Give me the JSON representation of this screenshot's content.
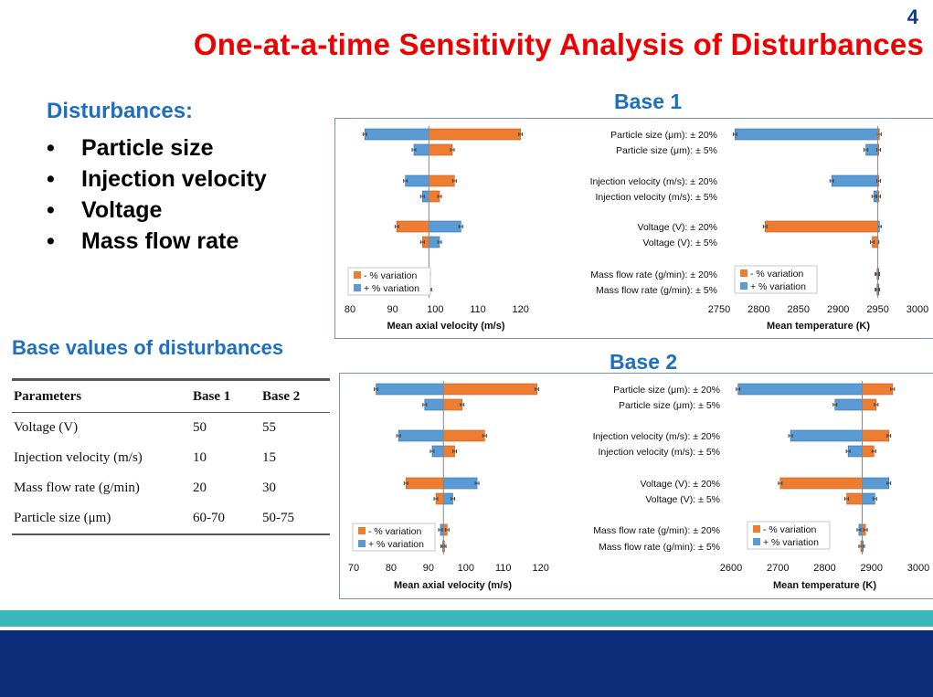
{
  "slide": {
    "number": "4",
    "title": "One-at-a-time Sensitivity Analysis of Disturbances"
  },
  "disturbances": {
    "heading": "Disturbances:",
    "bullet": "•",
    "items": [
      "Particle size",
      "Injection velocity",
      "Voltage",
      "Mass flow rate"
    ]
  },
  "base_values": {
    "heading": "Base values of disturbances",
    "columns": [
      "Parameters",
      "Base 1",
      "Base 2"
    ],
    "rows": [
      [
        "Voltage (V)",
        "50",
        "55"
      ],
      [
        "Injection velocity (m/s)",
        "10",
        "15"
      ],
      [
        "Mass flow rate (g/min)",
        "20",
        "30"
      ],
      [
        "Particle size (μm)",
        "60-70",
        "50-75"
      ]
    ]
  },
  "colors": {
    "minus": "#ed7d31",
    "plus": "#5b9bd5",
    "minus_stroke": "#c4591a",
    "plus_stroke": "#2e6fa7",
    "title_red": "#ee0000",
    "heading_blue": "#1f6fbf"
  },
  "chart_labels": {
    "base1_title": "Base 1",
    "base2_title": "Base 2"
  },
  "chart_data": [
    {
      "type": "bar",
      "orientation": "horizontal",
      "group": "Base 1",
      "xlabel": "Mean axial velocity (m/s)",
      "xlim": [
        80,
        125
      ],
      "xticks": [
        80,
        90,
        100,
        110,
        120
      ],
      "base_value": 98.5,
      "categories": [
        "Particle size (μm): ± 20%",
        "Particle size (μm): ± 5%",
        "Injection velocity (m/s): ± 20%",
        "Injection velocity (m/s): ± 5%",
        "Voltage (V): ± 20%",
        "Voltage (V): ± 5%",
        "Mass flow rate (g/min): ± 20%",
        "Mass flow rate (g/min): ± 5%"
      ],
      "series": [
        {
          "name": "- % variation",
          "values": [
            120,
            104,
            104.5,
            101,
            91,
            97,
            98.4,
            98.6
          ]
        },
        {
          "name": "+ % variation",
          "values": [
            83.5,
            95,
            93,
            97,
            106,
            101,
            98.2,
            98.7
          ]
        }
      ],
      "legend": "bottom-left",
      "grid": false
    },
    {
      "type": "bar",
      "orientation": "horizontal",
      "group": "Base 1",
      "xlabel": "Mean temperature (K)",
      "xlim": [
        2750,
        3000
      ],
      "xticks": [
        2750,
        2800,
        2850,
        2900,
        2950,
        3000
      ],
      "base_value": 2950,
      "categories": [
        "Particle size (μm): ± 20%",
        "Particle size (μm): ± 5%",
        "Injection velocity (m/s): ± 20%",
        "Injection velocity (m/s): ± 5%",
        "Voltage (V): ± 20%",
        "Voltage (V): ± 5%",
        "Mass flow rate (g/min): ± 20%",
        "Mass flow rate (g/min): ± 5%"
      ],
      "series": [
        {
          "name": "- % variation",
          "values": [
            2952,
            2951,
            2951,
            2951,
            2808,
            2943,
            2949,
            2949
          ]
        },
        {
          "name": "+ % variation",
          "values": [
            2770,
            2935,
            2892,
            2945,
            2952,
            2949,
            2950,
            2950
          ]
        }
      ],
      "legend": "bottom-left",
      "grid": false
    },
    {
      "type": "bar",
      "orientation": "horizontal",
      "group": "Base 2",
      "xlabel": "Mean axial velocity (m/s)",
      "xlim": [
        70,
        123
      ],
      "xticks": [
        70,
        80,
        90,
        100,
        110,
        120
      ],
      "base_value": 94,
      "categories": [
        "Particle size (μm): ± 20%",
        "Particle size (μm): ± 5%",
        "Injection velocity (m/s): ± 20%",
        "Injection velocity (m/s): ± 5%",
        "Voltage (V): ± 20%",
        "Voltage (V): ± 5%",
        "Mass flow rate (g/min): ± 20%",
        "Mass flow rate (g/min): ± 5%"
      ],
      "series": [
        {
          "name": "- % variation",
          "values": [
            119,
            99,
            105,
            97,
            84,
            92,
            95,
            94.2
          ]
        },
        {
          "name": "+ % variation",
          "values": [
            76,
            89,
            82,
            91,
            103,
            96.5,
            93.2,
            93.8
          ]
        }
      ],
      "legend": "bottom-left",
      "grid": false
    },
    {
      "type": "bar",
      "orientation": "horizontal",
      "group": "Base 2",
      "xlabel": "Mean temperature (K)",
      "xlim": [
        2600,
        3000
      ],
      "xticks": [
        2600,
        2700,
        2800,
        2900,
        3000
      ],
      "base_value": 2880,
      "categories": [
        "Particle size (μm): ± 20%",
        "Particle size (μm): ± 5%",
        "Injection velocity (m/s): ± 20%",
        "Injection velocity (m/s): ± 5%",
        "Voltage (V): ± 20%",
        "Voltage (V): ± 5%",
        "Mass flow rate (g/min): ± 20%",
        "Mass flow rate (g/min): ± 5%"
      ],
      "series": [
        {
          "name": "- % variation",
          "values": [
            2945,
            2910,
            2937,
            2905,
            2705,
            2847,
            2887,
            2877
          ]
        },
        {
          "name": "+ % variation",
          "values": [
            2615,
            2822,
            2727,
            2850,
            2937,
            2907,
            2873,
            2881
          ]
        }
      ],
      "legend": "bottom-left",
      "grid": false
    }
  ]
}
